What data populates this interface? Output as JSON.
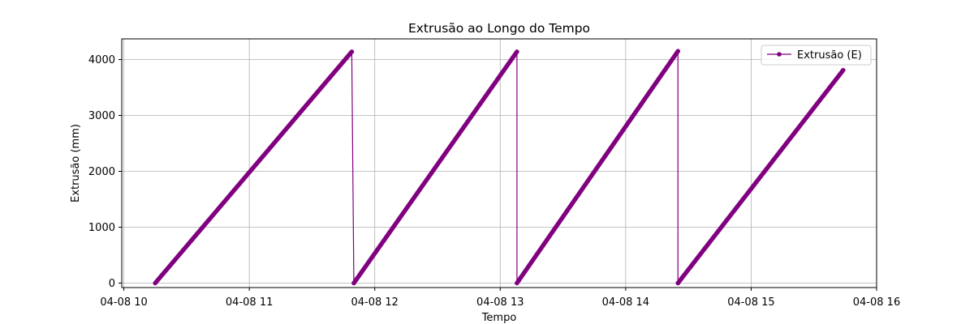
{
  "chart_data": {
    "type": "line",
    "title": "Extrusão ao Longo do Tempo",
    "xlabel": "Tempo",
    "ylabel": "Extrusão (mm)",
    "xlim": [
      "2024-04-08 09:59",
      "2024-04-08 16:00"
    ],
    "ylim": [
      -80,
      4370
    ],
    "x_ticks": [
      {
        "value": "2024-04-08 10:00",
        "label": "04-08 10"
      },
      {
        "value": "2024-04-08 11:00",
        "label": "04-08 11"
      },
      {
        "value": "2024-04-08 12:00",
        "label": "04-08 12"
      },
      {
        "value": "2024-04-08 13:00",
        "label": "04-08 13"
      },
      {
        "value": "2024-04-08 14:00",
        "label": "04-08 14"
      },
      {
        "value": "2024-04-08 15:00",
        "label": "04-08 15"
      },
      {
        "value": "2024-04-08 16:00",
        "label": "04-08 16"
      }
    ],
    "y_ticks": [
      0,
      1000,
      2000,
      3000,
      4000
    ],
    "grid": true,
    "legend_position": "top-right",
    "series": [
      {
        "name": "Extrusão (E)",
        "color": "#800080",
        "marker": "circle",
        "segments": [
          {
            "start": [
              "2024-04-08 10:15",
              0
            ],
            "end": [
              "2024-04-08 11:49",
              4140
            ]
          },
          {
            "start": [
              "2024-04-08 11:50",
              0
            ],
            "end": [
              "2024-04-08 13:08",
              4140
            ]
          },
          {
            "start": [
              "2024-04-08 13:08",
              0
            ],
            "end": [
              "2024-04-08 14:25",
              4150
            ]
          },
          {
            "start": [
              "2024-04-08 14:25",
              0
            ],
            "end": [
              "2024-04-08 15:44",
              3810
            ]
          }
        ]
      }
    ]
  }
}
